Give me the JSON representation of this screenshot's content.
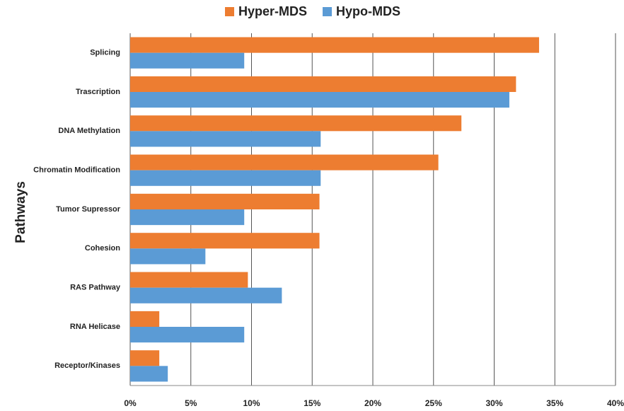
{
  "chart_data": {
    "type": "hbar",
    "y_label": "Pathways",
    "categories": [
      "Splicing",
      "Trascription",
      "DNA Methylation",
      "Chromatin Modification",
      "Tumor Supressor",
      "Cohesion",
      "RAS Pathway",
      "RNA Helicase",
      "Receptor/Kinases"
    ],
    "series": [
      {
        "name": "Hyper-MDS",
        "color": "#ed7d31",
        "values": [
          33.7,
          31.8,
          27.3,
          25.4,
          15.6,
          15.6,
          9.7,
          2.4,
          2.4
        ]
      },
      {
        "name": "Hypo-MDS",
        "color": "#5b9bd5",
        "values": [
          9.4,
          31.25,
          15.7,
          15.7,
          9.4,
          6.2,
          12.5,
          9.4,
          3.1
        ]
      }
    ],
    "xlim": [
      0,
      40
    ],
    "xticks": [
      {
        "value": 0,
        "label": "0%"
      },
      {
        "value": 5,
        "label": "5%"
      },
      {
        "value": 10,
        "label": "10%"
      },
      {
        "value": 15,
        "label": "15%"
      },
      {
        "value": 20,
        "label": "20%"
      },
      {
        "value": 25,
        "label": "25%"
      },
      {
        "value": 30,
        "label": "30%"
      },
      {
        "value": 35,
        "label": "35%"
      },
      {
        "value": 40,
        "label": "40%"
      }
    ],
    "grid": true,
    "legend": "top"
  }
}
